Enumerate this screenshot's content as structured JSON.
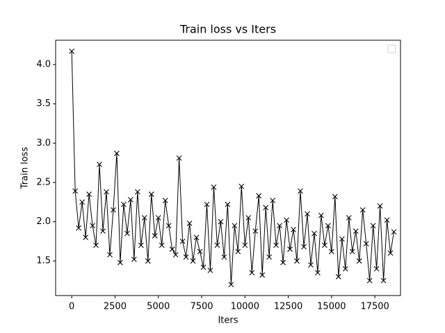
{
  "chart_data": {
    "type": "line",
    "title": "Train loss vs Iters",
    "x_label": "Iters",
    "y_label": "Train loss",
    "x": [
      0,
      200,
      400,
      600,
      800,
      1000,
      1200,
      1400,
      1600,
      1800,
      2000,
      2200,
      2400,
      2600,
      2800,
      3000,
      3200,
      3400,
      3600,
      3800,
      4000,
      4200,
      4400,
      4600,
      4800,
      5000,
      5200,
      5400,
      5600,
      5800,
      6000,
      6200,
      6400,
      6600,
      6800,
      7000,
      7200,
      7400,
      7600,
      7800,
      8000,
      8200,
      8400,
      8600,
      8800,
      9000,
      9200,
      9400,
      9600,
      9800,
      10000,
      10200,
      10400,
      10600,
      10800,
      11000,
      11200,
      11400,
      11600,
      11800,
      12000,
      12200,
      12400,
      12600,
      12800,
      13000,
      13200,
      13400,
      13600,
      13800,
      14000,
      14200,
      14400,
      14600,
      14800,
      15000,
      15200,
      15400,
      15600,
      15800,
      16000,
      16200,
      16400,
      16600,
      16800,
      17000,
      17200,
      17400,
      17600,
      17800,
      18000,
      18200,
      18400,
      18600
    ],
    "values": [
      4.17,
      2.39,
      1.92,
      2.25,
      1.8,
      2.35,
      1.95,
      1.7,
      2.73,
      1.88,
      2.38,
      1.58,
      2.15,
      2.87,
      1.48,
      2.22,
      1.85,
      2.28,
      1.52,
      2.38,
      1.7,
      2.05,
      1.5,
      2.35,
      1.82,
      2.05,
      1.7,
      2.27,
      1.95,
      1.65,
      1.58,
      2.81,
      1.75,
      1.55,
      1.98,
      1.5,
      1.8,
      1.62,
      1.42,
      2.22,
      1.38,
      2.44,
      1.7,
      2.0,
      1.55,
      2.22,
      1.2,
      1.95,
      1.62,
      2.45,
      1.7,
      2.05,
      1.35,
      1.88,
      2.33,
      1.32,
      2.18,
      1.55,
      2.27,
      1.7,
      1.95,
      1.48,
      2.02,
      1.65,
      1.9,
      1.5,
      2.39,
      1.68,
      2.1,
      1.45,
      1.85,
      1.35,
      2.08,
      1.7,
      1.95,
      1.62,
      2.32,
      1.3,
      1.78,
      1.4,
      2.05,
      1.62,
      1.88,
      1.5,
      2.15,
      1.72,
      1.25,
      1.95,
      1.4,
      2.2,
      1.25,
      2.02,
      1.6,
      1.87
    ],
    "color": "#000000",
    "marker": "x",
    "xlim": [
      -930,
      18980
    ],
    "xticks": [
      0,
      2500,
      5000,
      7500,
      10000,
      12500,
      15000,
      17500
    ],
    "ylim": [
      1.06,
      4.31
    ],
    "yticks": [
      1.5,
      {
        "value": 2,
        "label": "2.0"
      },
      2.5,
      {
        "value": 3,
        "label": "3.0"
      },
      3.5,
      {
        "value": 4,
        "label": "4.0"
      }
    ]
  }
}
